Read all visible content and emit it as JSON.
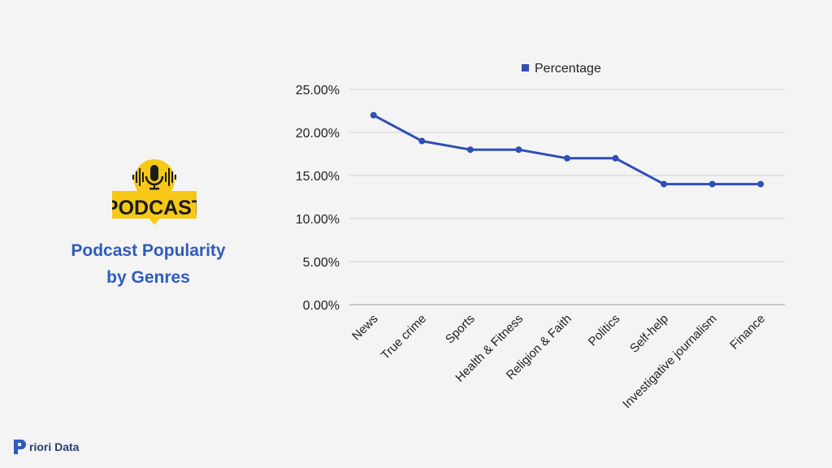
{
  "title": {
    "line1": "Podcast Popularity",
    "line2": "by Genres"
  },
  "logo": {
    "text": "PODCAST",
    "icon": "microphone-icon"
  },
  "brand": {
    "text": "riori Data",
    "icon": "priori-data-logo"
  },
  "colors": {
    "line": "#2f4fb5",
    "title": "#2f5bc1",
    "grid": "#d0d0d0",
    "logo_yellow": "#f7c815"
  },
  "chart_data": {
    "type": "line",
    "categories": [
      "News",
      "True crime",
      "Sports",
      "Health & Fitness",
      "Religion & Faith",
      "Politics",
      "Self-help",
      "Investigative journalism",
      "Finance"
    ],
    "series": [
      {
        "name": "Percentage",
        "values": [
          22,
          19,
          18,
          18,
          17,
          17,
          14,
          14,
          14
        ]
      }
    ],
    "y_ticks": [
      "0.00%",
      "5.00%",
      "10.00%",
      "15.00%",
      "20.00%",
      "25.00%"
    ],
    "ylim": [
      0,
      25
    ],
    "grid": true,
    "legend": "top"
  }
}
